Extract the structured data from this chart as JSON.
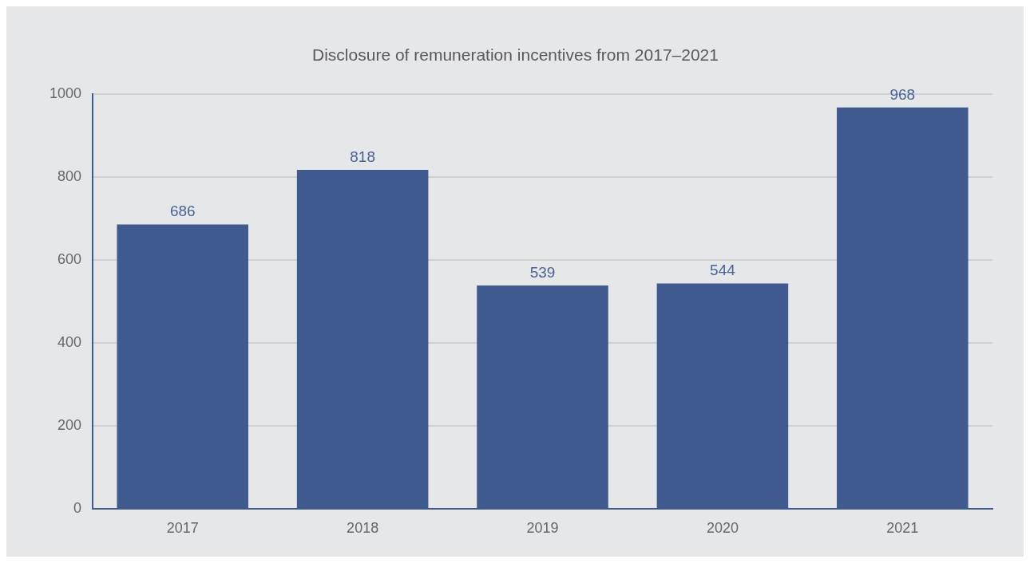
{
  "chart_data": {
    "type": "bar",
    "title": "Disclosure of remuneration incentives from 2017–2021",
    "categories": [
      "2017",
      "2018",
      "2019",
      "2020",
      "2021"
    ],
    "values": [
      686,
      818,
      539,
      544,
      968
    ],
    "color": "#3e5a8e",
    "ylim": [
      0,
      1000
    ],
    "yticks": [
      0,
      200,
      400,
      600,
      800,
      1000
    ],
    "grid": "y",
    "legend": false,
    "data_labels": true
  }
}
